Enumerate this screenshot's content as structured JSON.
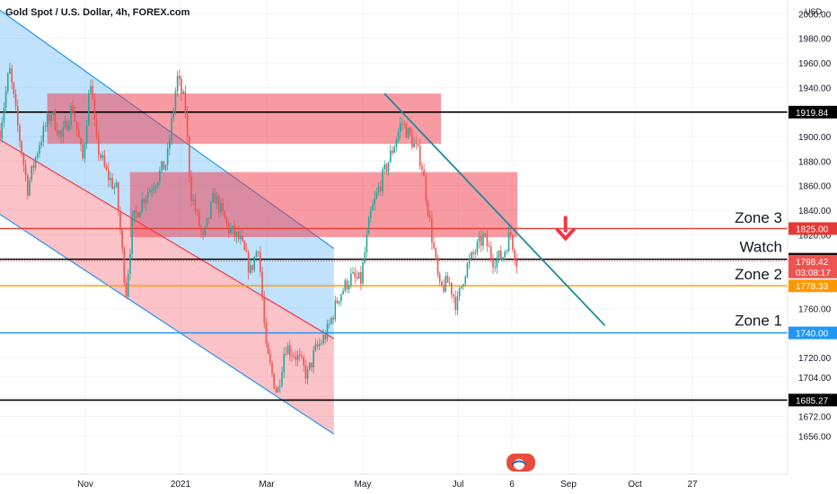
{
  "chart_data": {
    "type": "candlestick",
    "title": "Gold Spot / U.S. Dollar, 4h, FOREX.com",
    "currency": "USD",
    "y_ticks": [
      1656,
      1672,
      1688,
      1704,
      1720,
      1740,
      1760,
      1780,
      1800,
      1820,
      1840,
      1860,
      1880,
      1900,
      1920,
      1940,
      1960,
      1980,
      2000
    ],
    "y_top_label": "2000.00",
    "ylim": [
      1651,
      2012
    ],
    "x_ticks": [
      "Nov",
      "2021",
      "Mar",
      "May",
      "Jul",
      "6",
      "Sep",
      "Oct",
      "27"
    ],
    "price_lines": [
      {
        "value": 1919.84,
        "label": "1919.84",
        "color": "#000000",
        "style": "solid"
      },
      {
        "value": 1825.0,
        "label": "1825.00",
        "color": "#e53935",
        "style": "solid"
      },
      {
        "value": 1800.0,
        "label": "1800.00",
        "color": "#000000",
        "style": "solid"
      },
      {
        "value": 1778.33,
        "label": "1778.33",
        "color": "#ff9800",
        "style": "solid"
      },
      {
        "value": 1740.0,
        "label": "1740.00",
        "color": "#2196f3",
        "style": "solid"
      },
      {
        "value": 1685.27,
        "label": "1685.27",
        "color": "#000000",
        "style": "solid"
      }
    ],
    "current_price": {
      "value": 1798.42,
      "label": "1798.42",
      "countdown": "03:08:17",
      "color": "#ef5350"
    },
    "zone_labels": [
      {
        "text": "Zone 3",
        "value": 1832
      },
      {
        "text": "Watch",
        "value": 1808
      },
      {
        "text": "Zone 2",
        "value": 1786
      },
      {
        "text": "Zone 1",
        "value": 1748
      }
    ],
    "channel": {
      "red_upper": [
        [
          -0.02,
          1905
        ],
        [
          0.43,
          1733
        ]
      ],
      "red_lower": [
        [
          -0.02,
          1845
        ],
        [
          0.43,
          1655
        ]
      ],
      "blue_upper": [
        [
          -0.02,
          2012
        ],
        [
          0.43,
          1806
        ]
      ],
      "blue_lower": [
        [
          -0.02,
          1905
        ],
        [
          0.43,
          1733
        ]
      ],
      "x_end": 0.424
    },
    "supply_zones": [
      {
        "x0": 0.06,
        "x1": 0.56,
        "top": 1935,
        "bottom": 1894
      },
      {
        "x0": 0.165,
        "x1": 0.657,
        "top": 1871,
        "bottom": 1818
      }
    ],
    "trendline": [
      [
        0.488,
        1935
      ],
      [
        0.768,
        1746
      ]
    ],
    "arrow": {
      "x": 0.718,
      "value": 1822,
      "color": "#f23645"
    },
    "series": [
      {
        "x": 0.0,
        "close": 1905
      },
      {
        "x": 0.012,
        "close": 1955
      },
      {
        "x": 0.022,
        "close": 1910
      },
      {
        "x": 0.035,
        "close": 1858
      },
      {
        "x": 0.05,
        "close": 1895
      },
      {
        "x": 0.065,
        "close": 1920
      },
      {
        "x": 0.078,
        "close": 1898
      },
      {
        "x": 0.092,
        "close": 1925
      },
      {
        "x": 0.105,
        "close": 1880
      },
      {
        "x": 0.115,
        "close": 1948
      },
      {
        "x": 0.122,
        "close": 1895
      },
      {
        "x": 0.135,
        "close": 1870
      },
      {
        "x": 0.148,
        "close": 1856
      },
      {
        "x": 0.16,
        "close": 1772
      },
      {
        "x": 0.168,
        "close": 1830
      },
      {
        "x": 0.182,
        "close": 1850
      },
      {
        "x": 0.198,
        "close": 1865
      },
      {
        "x": 0.212,
        "close": 1880
      },
      {
        "x": 0.225,
        "close": 1948
      },
      {
        "x": 0.235,
        "close": 1925
      },
      {
        "x": 0.242,
        "close": 1855
      },
      {
        "x": 0.258,
        "close": 1815
      },
      {
        "x": 0.272,
        "close": 1852
      },
      {
        "x": 0.29,
        "close": 1825
      },
      {
        "x": 0.305,
        "close": 1815
      },
      {
        "x": 0.318,
        "close": 1790
      },
      {
        "x": 0.328,
        "close": 1812
      },
      {
        "x": 0.338,
        "close": 1725
      },
      {
        "x": 0.352,
        "close": 1690
      },
      {
        "x": 0.362,
        "close": 1730
      },
      {
        "x": 0.378,
        "close": 1720
      },
      {
        "x": 0.39,
        "close": 1705
      },
      {
        "x": 0.4,
        "close": 1725
      },
      {
        "x": 0.415,
        "close": 1740
      },
      {
        "x": 0.43,
        "close": 1770
      },
      {
        "x": 0.445,
        "close": 1785
      },
      {
        "x": 0.458,
        "close": 1782
      },
      {
        "x": 0.47,
        "close": 1835
      },
      {
        "x": 0.482,
        "close": 1860
      },
      {
        "x": 0.496,
        "close": 1885
      },
      {
        "x": 0.51,
        "close": 1912
      },
      {
        "x": 0.522,
        "close": 1898
      },
      {
        "x": 0.535,
        "close": 1880
      },
      {
        "x": 0.548,
        "close": 1820
      },
      {
        "x": 0.558,
        "close": 1775
      },
      {
        "x": 0.57,
        "close": 1782
      },
      {
        "x": 0.58,
        "close": 1762
      },
      {
        "x": 0.59,
        "close": 1790
      },
      {
        "x": 0.602,
        "close": 1805
      },
      {
        "x": 0.614,
        "close": 1818
      },
      {
        "x": 0.626,
        "close": 1800
      },
      {
        "x": 0.638,
        "close": 1802
      },
      {
        "x": 0.648,
        "close": 1822
      },
      {
        "x": 0.656,
        "close": 1798
      }
    ]
  }
}
